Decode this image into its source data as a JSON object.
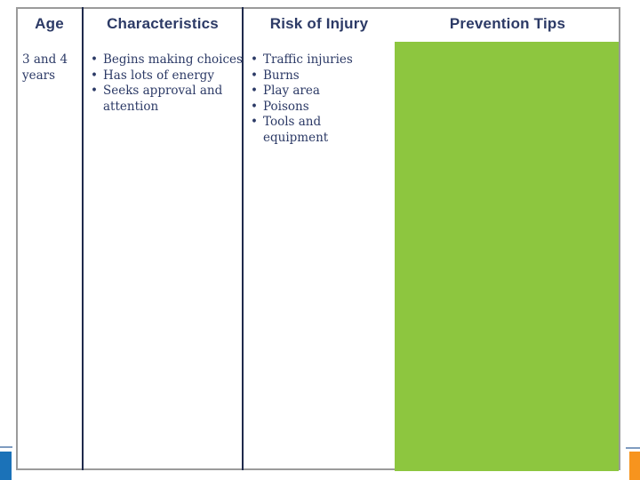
{
  "table": {
    "columns": [
      {
        "header": "Age"
      },
      {
        "header": "Characteristics"
      },
      {
        "header": "Risk of Injury"
      },
      {
        "header": "Prevention Tips"
      }
    ],
    "row": {
      "age": "3 and 4 years",
      "characteristics": [
        "Begins making choices",
        "Has lots of energy",
        "Seeks approval and attention"
      ],
      "risk_of_injury": [
        "Traffic injuries",
        "Burns",
        "Play area",
        "Poisons",
        "Tools and equipment"
      ],
      "prevention_tips": ""
    }
  },
  "colors": {
    "navy": "#2c3a66",
    "green": "#8dc63f",
    "blue": "#1b72b8",
    "orange": "#f7941e",
    "line_blue": "#7f9cc0",
    "border_gray": "#9b9b9b",
    "border_navy": "#1f2a4c"
  }
}
